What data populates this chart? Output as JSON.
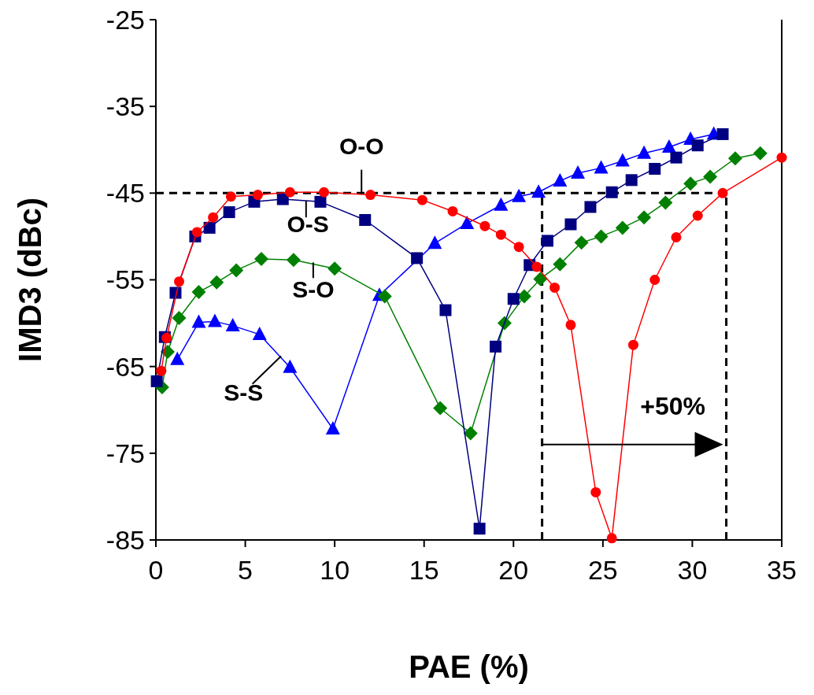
{
  "chart_data": {
    "type": "line",
    "xlabel": "PAE (%)",
    "ylabel": "IMD3 (dBc)",
    "xlim": [
      0,
      35
    ],
    "ylim": [
      -85,
      -25
    ],
    "xticks": [
      0,
      5,
      10,
      15,
      20,
      25,
      30,
      35
    ],
    "yticks": [
      -85,
      -75,
      -65,
      -55,
      -45,
      -35,
      -25
    ],
    "grid": false,
    "series": [
      {
        "name": "O-O",
        "color": "#ff0000",
        "marker": "circle",
        "x": [
          0.3,
          0.6,
          1.3,
          2.3,
          3.2,
          4.2,
          5.7,
          7.5,
          9.4,
          12.0,
          14.9,
          16.6,
          18.4,
          19.3,
          20.3,
          21.3,
          22.3,
          23.2,
          24.6,
          25.5,
          26.7,
          27.9,
          29.1,
          30.3,
          31.7,
          35.0
        ],
        "values": [
          -65.5,
          -61.7,
          -55.2,
          -49.5,
          -47.8,
          -45.4,
          -45.2,
          -44.9,
          -44.9,
          -45.2,
          -45.8,
          -47.1,
          -48.8,
          -49.8,
          -51.2,
          -53.5,
          -55.9,
          -60.2,
          -79.5,
          -84.8,
          -62.5,
          -55.0,
          -50.1,
          -47.6,
          -45.0,
          -40.9
        ]
      },
      {
        "name": "O-S",
        "color": "#000080",
        "marker": "square",
        "x": [
          0.05,
          0.5,
          1.1,
          2.2,
          3.0,
          4.1,
          5.5,
          7.1,
          9.2,
          11.7,
          14.6,
          16.2,
          18.1,
          19.0,
          20.0,
          20.9,
          21.9,
          23.2,
          24.3,
          25.5,
          26.6,
          27.9,
          29.1,
          30.3,
          31.7
        ],
        "values": [
          -66.7,
          -61.6,
          -56.5,
          -50.0,
          -49.0,
          -47.2,
          -46.0,
          -45.7,
          -46.0,
          -48.1,
          -52.5,
          -58.5,
          -83.7,
          -62.7,
          -57.2,
          -53.3,
          -50.5,
          -48.6,
          -46.6,
          -44.9,
          -43.5,
          -42.2,
          -40.9,
          -39.5,
          -38.2
        ]
      },
      {
        "name": "S-O",
        "color": "#008000",
        "marker": "diamond",
        "x": [
          0.35,
          0.66,
          1.3,
          2.4,
          3.4,
          4.5,
          5.9,
          7.7,
          10.0,
          12.8,
          15.9,
          17.6,
          19.5,
          20.6,
          21.5,
          22.6,
          23.8,
          24.9,
          26.1,
          27.3,
          28.5,
          29.9,
          31.0,
          32.4,
          33.8
        ],
        "values": [
          -67.4,
          -63.3,
          -59.4,
          -56.4,
          -55.3,
          -53.9,
          -52.6,
          -52.7,
          -53.7,
          -56.9,
          -69.8,
          -72.7,
          -60.0,
          -56.9,
          -54.9,
          -53.2,
          -50.7,
          -50.0,
          -49.0,
          -47.8,
          -46.1,
          -43.9,
          -43.1,
          -41.0,
          -40.4
        ]
      },
      {
        "name": "S-S",
        "color": "#0000ff",
        "marker": "triangle",
        "x": [
          1.2,
          2.4,
          3.3,
          4.3,
          5.8,
          7.5,
          9.9,
          12.5,
          15.6,
          17.4,
          19.3,
          20.3,
          21.4,
          22.6,
          23.6,
          24.9,
          26.1,
          27.3,
          28.7,
          29.9,
          31.2
        ],
        "values": [
          -64.2,
          -59.9,
          -59.8,
          -60.3,
          -61.3,
          -65.1,
          -72.2,
          -56.8,
          -50.8,
          -48.5,
          -46.4,
          -45.4,
          -44.9,
          -43.6,
          -42.7,
          -42.1,
          -41.3,
          -40.4,
          -39.7,
          -38.8,
          -38.2
        ]
      }
    ],
    "ref_lines": [
      {
        "axis": "y",
        "value": -45,
        "color": "#000000",
        "line_style": "dashed"
      },
      {
        "axis": "x",
        "value": 21.6,
        "color": "#000000",
        "line_style": "dashed"
      },
      {
        "axis": "x",
        "value": 31.9,
        "color": "#000000",
        "line_style": "dashed"
      }
    ],
    "annotations": [
      {
        "text": "+50%",
        "x": 31.9,
        "y": -74
      }
    ]
  }
}
